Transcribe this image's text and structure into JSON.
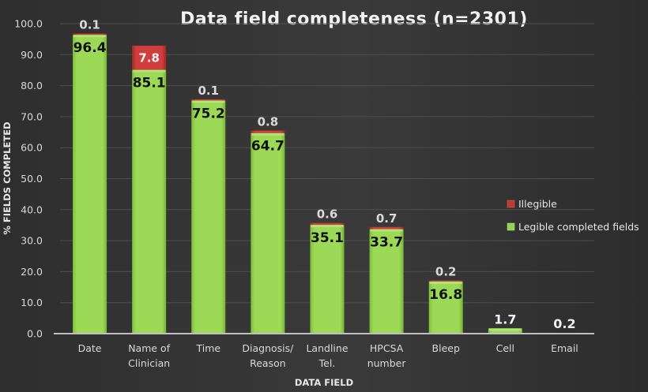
{
  "chart_data": {
    "type": "bar",
    "stacked": true,
    "title": "Data field completeness (n=2301)",
    "xlabel": "DATA FIELD",
    "ylabel": "% FIELDS COMPLETED",
    "ylim": [
      0,
      100
    ],
    "yticks": [
      "0.0",
      "10.0",
      "20.0",
      "30.0",
      "40.0",
      "50.0",
      "60.0",
      "70.0",
      "80.0",
      "90.0",
      "100.0"
    ],
    "ytick_values": [
      0,
      10,
      20,
      30,
      40,
      50,
      60,
      70,
      80,
      90,
      100
    ],
    "grid": true,
    "legend_position": "right",
    "categories": [
      [
        "Date"
      ],
      [
        "Name of",
        "Clinician"
      ],
      [
        "Time"
      ],
      [
        "Diagnosis/",
        "Reason"
      ],
      [
        "Landline",
        "Tel."
      ],
      [
        "HPCSA",
        "number"
      ],
      [
        "Bleep"
      ],
      [
        "Cell"
      ],
      [
        "Email"
      ]
    ],
    "series": [
      {
        "name": "Legible completed fields",
        "color": "#92d050",
        "values": [
          96.4,
          85.1,
          75.2,
          64.7,
          35.1,
          33.7,
          16.8,
          1.7,
          0.2
        ],
        "labels": [
          "96.4",
          "85.1",
          "75.2",
          "64.7",
          "35.1",
          "33.7",
          "16.8",
          "1.7",
          "0.2"
        ]
      },
      {
        "name": "Illegible",
        "color": "#c0392b",
        "values": [
          0.1,
          7.8,
          0.1,
          0.8,
          0.6,
          0.7,
          0.2,
          null,
          null
        ],
        "labels": [
          "0.1",
          "7.8",
          "0.1",
          "0.8",
          "0.6",
          "0.7",
          "0.2",
          null,
          null
        ]
      }
    ],
    "legend": [
      "Illegible",
      "Legible completed fields"
    ]
  }
}
